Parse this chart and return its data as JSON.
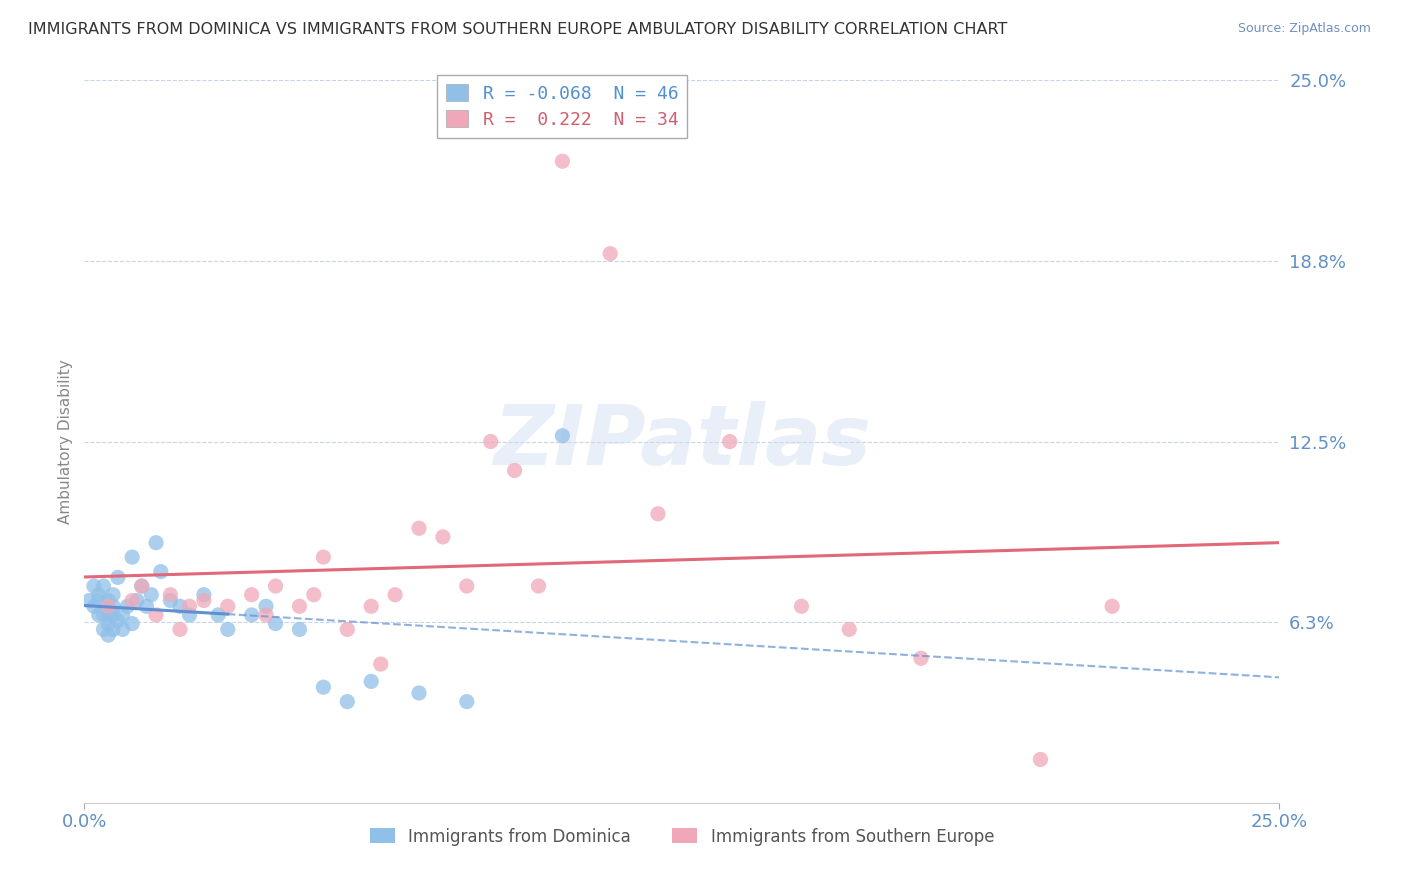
{
  "title": "IMMIGRANTS FROM DOMINICA VS IMMIGRANTS FROM SOUTHERN EUROPE AMBULATORY DISABILITY CORRELATION CHART",
  "source": "Source: ZipAtlas.com",
  "ylabel": "Ambulatory Disability",
  "xlim": [
    0.0,
    0.25
  ],
  "ylim": [
    0.0,
    0.25
  ],
  "xtick_positions": [
    0.0,
    0.25
  ],
  "xtick_labels": [
    "0.0%",
    "25.0%"
  ],
  "ytick_values": [
    0.0625,
    0.125,
    0.1875,
    0.25
  ],
  "ytick_labels": [
    "6.3%",
    "12.5%",
    "18.8%",
    "25.0%"
  ],
  "series1_name": "Immigrants from Dominica",
  "series2_name": "Immigrants from Southern Europe",
  "series1_color": "#90c0e8",
  "series2_color": "#f0a8b8",
  "series1_line_color": "#6090d0",
  "series2_line_color": "#e06878",
  "R1": -0.068,
  "N1": 46,
  "R2": 0.222,
  "N2": 34,
  "background_color": "#ffffff",
  "grid_color": "#c8d4e8",
  "axis_label_color": "#6090c8",
  "tick_color": "#6090c8",
  "series1_x": [
    0.001,
    0.002,
    0.002,
    0.003,
    0.003,
    0.003,
    0.004,
    0.004,
    0.004,
    0.005,
    0.005,
    0.005,
    0.005,
    0.006,
    0.006,
    0.006,
    0.006,
    0.007,
    0.007,
    0.008,
    0.008,
    0.009,
    0.01,
    0.01,
    0.011,
    0.012,
    0.013,
    0.014,
    0.015,
    0.016,
    0.018,
    0.02,
    0.022,
    0.025,
    0.028,
    0.03,
    0.035,
    0.038,
    0.04,
    0.045,
    0.05,
    0.055,
    0.06,
    0.07,
    0.08,
    0.1
  ],
  "series1_y": [
    0.07,
    0.068,
    0.075,
    0.065,
    0.07,
    0.072,
    0.06,
    0.065,
    0.075,
    0.058,
    0.062,
    0.065,
    0.07,
    0.06,
    0.065,
    0.068,
    0.072,
    0.063,
    0.078,
    0.06,
    0.065,
    0.068,
    0.062,
    0.085,
    0.07,
    0.075,
    0.068,
    0.072,
    0.09,
    0.08,
    0.07,
    0.068,
    0.065,
    0.072,
    0.065,
    0.06,
    0.065,
    0.068,
    0.062,
    0.06,
    0.04,
    0.035,
    0.042,
    0.038,
    0.035,
    0.127
  ],
  "series2_x": [
    0.005,
    0.01,
    0.012,
    0.015,
    0.018,
    0.02,
    0.022,
    0.025,
    0.03,
    0.035,
    0.038,
    0.04,
    0.045,
    0.048,
    0.05,
    0.055,
    0.06,
    0.062,
    0.065,
    0.07,
    0.075,
    0.08,
    0.085,
    0.09,
    0.095,
    0.1,
    0.11,
    0.12,
    0.135,
    0.15,
    0.16,
    0.175,
    0.2,
    0.215
  ],
  "series2_y": [
    0.068,
    0.07,
    0.075,
    0.065,
    0.072,
    0.06,
    0.068,
    0.07,
    0.068,
    0.072,
    0.065,
    0.075,
    0.068,
    0.072,
    0.085,
    0.06,
    0.068,
    0.048,
    0.072,
    0.095,
    0.092,
    0.075,
    0.125,
    0.115,
    0.075,
    0.222,
    0.19,
    0.1,
    0.125,
    0.068,
    0.06,
    0.05,
    0.015,
    0.068
  ],
  "legend1_label": "R = -0.068  N = 46",
  "legend2_label": "R =  0.222  N = 34",
  "legend1_text_color": "#5090d0",
  "legend2_text_color": "#d06070",
  "watermark_text": "ZIPatlas",
  "watermark_color": "#d0ddf0"
}
